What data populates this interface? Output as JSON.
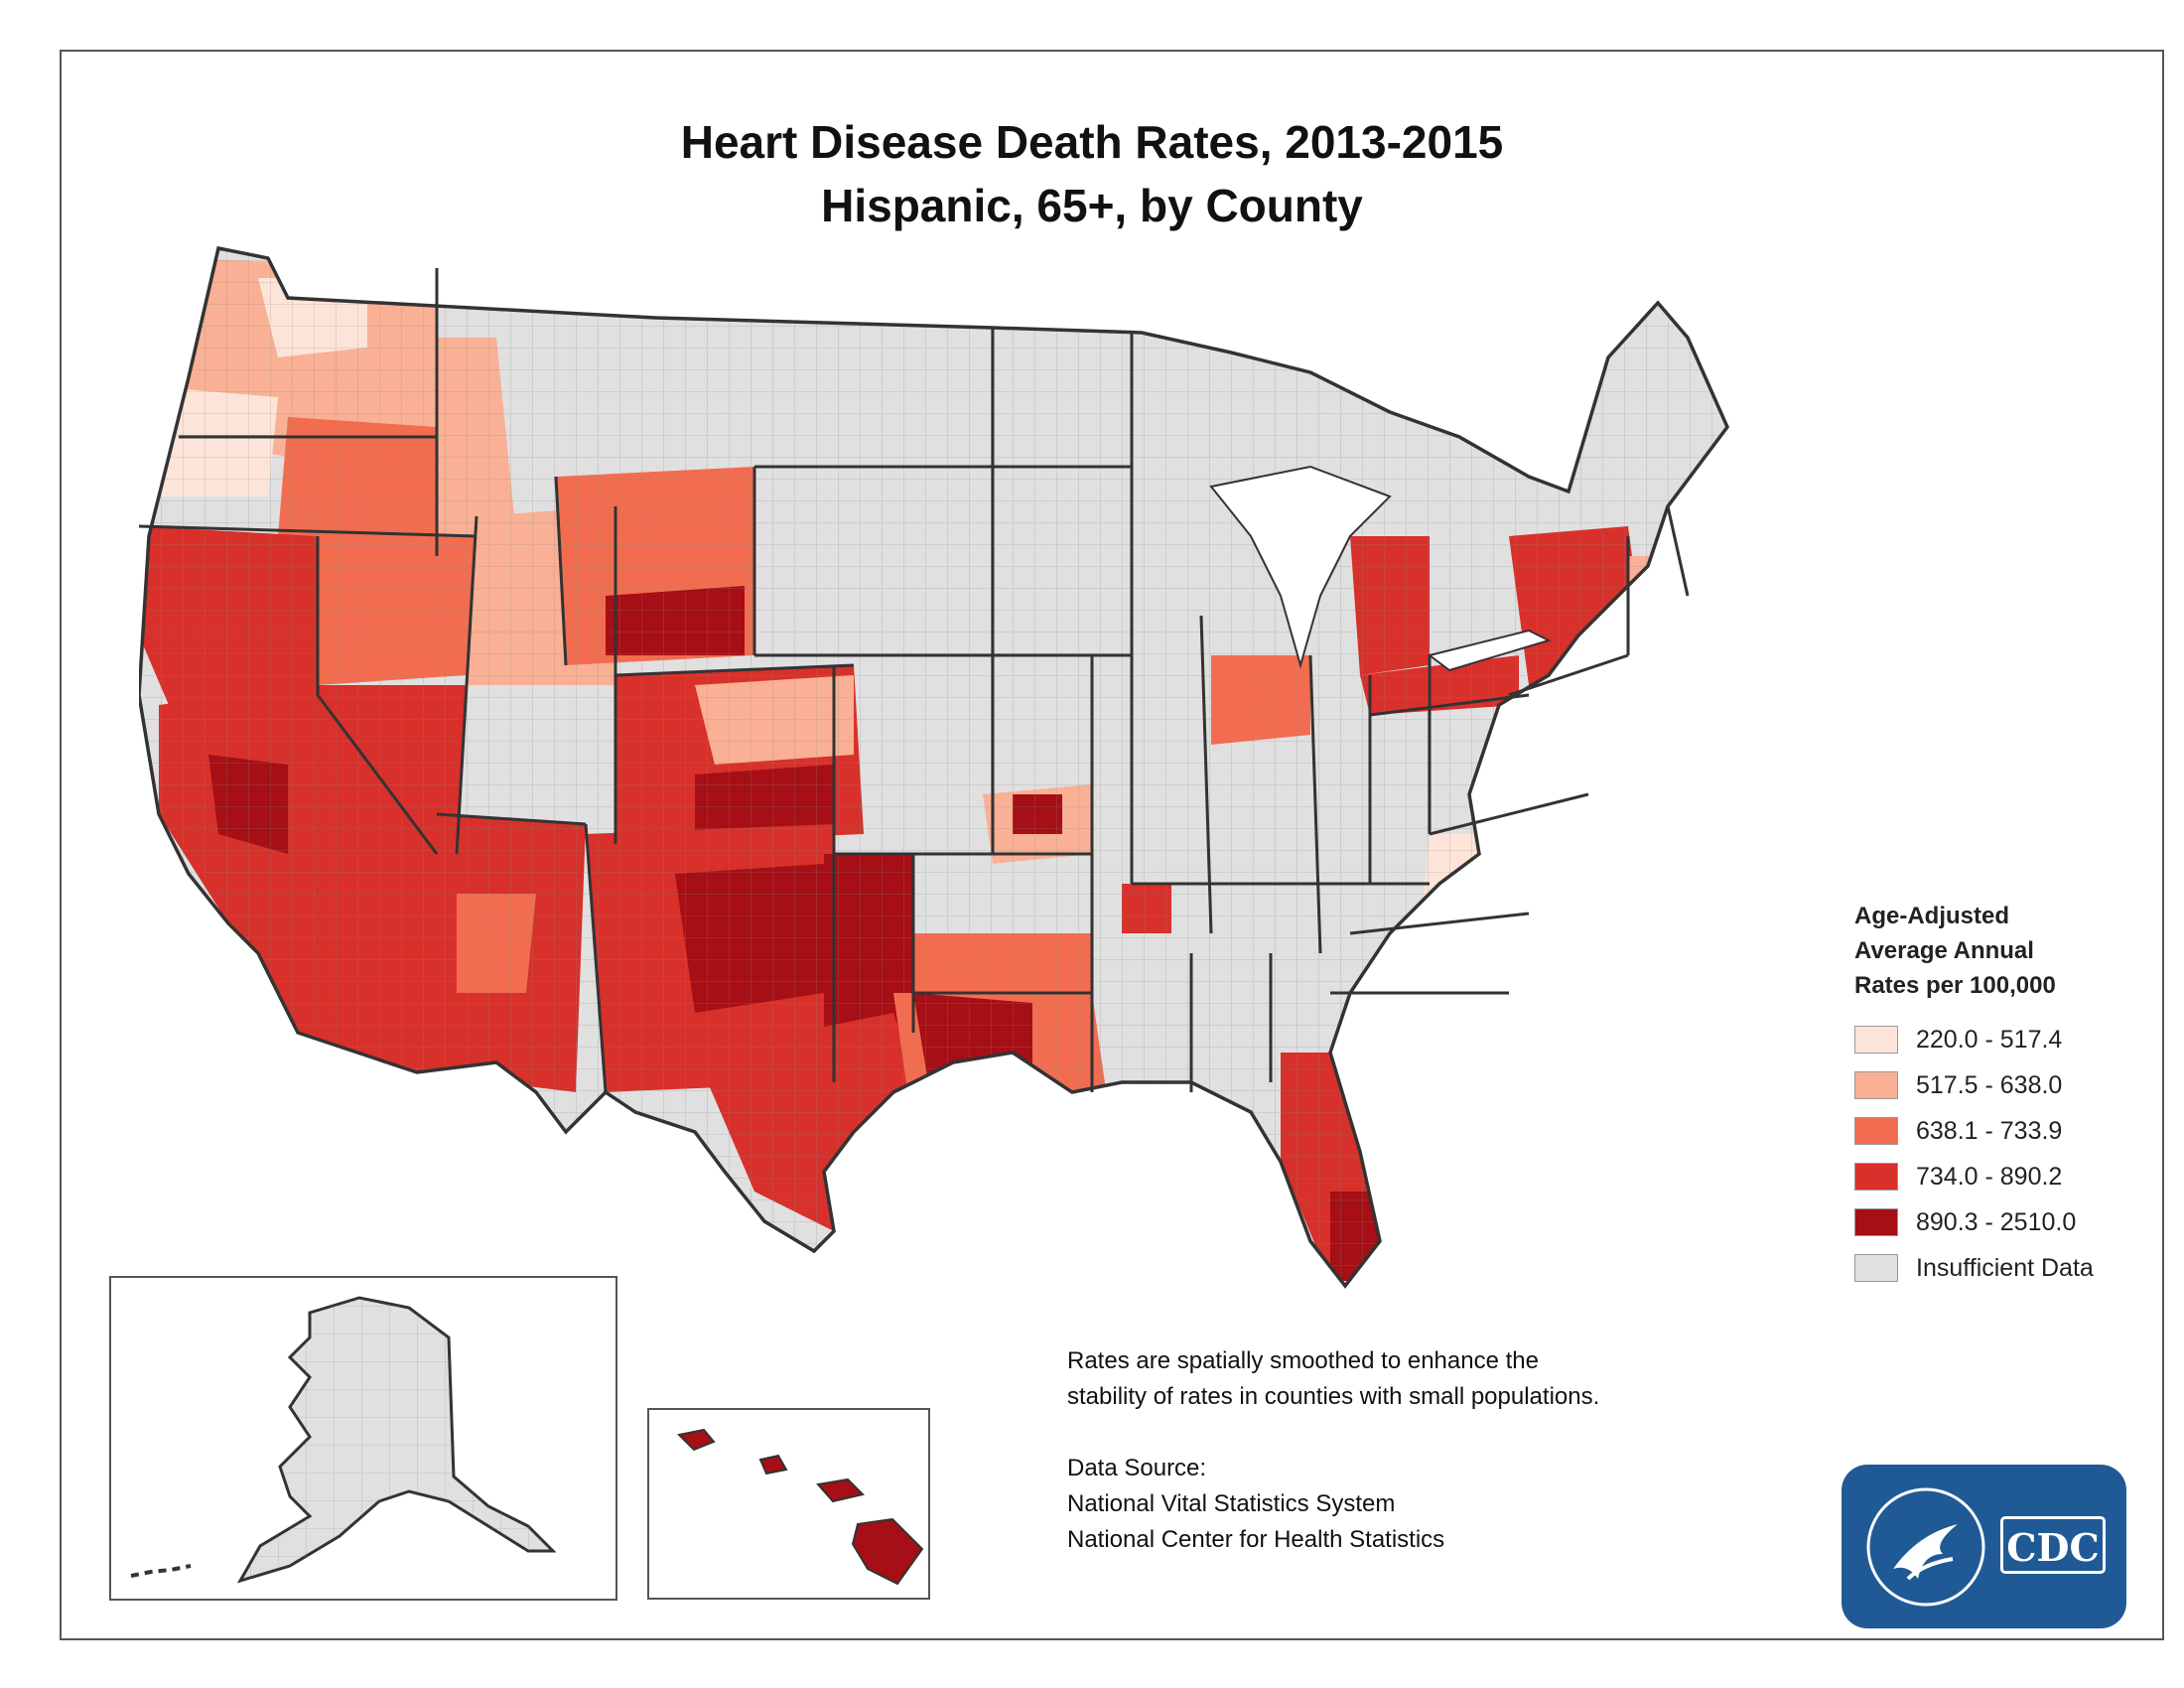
{
  "title": {
    "line1": "Heart Disease Death Rates, 2013-2015",
    "line2": "Hispanic, 65+, by County"
  },
  "legend": {
    "title_lines": [
      "Age-Adjusted",
      "Average Annual",
      "Rates per 100,000"
    ],
    "items": [
      {
        "label": "220.0 - 517.4",
        "color": "#fde4d9"
      },
      {
        "label": "517.5 - 638.0",
        "color": "#f9b095"
      },
      {
        "label": "638.1 - 733.9",
        "color": "#f26d50"
      },
      {
        "label": "734.0 - 890.2",
        "color": "#d8302a"
      },
      {
        "label": "890.3 - 2510.0",
        "color": "#a50f15"
      },
      {
        "label": "Insufficient Data",
        "color": "#e0e0e0"
      }
    ]
  },
  "notes": {
    "smoothing": "Rates are spatially smoothed to enhance the stability of rates in counties with small populations.",
    "source_heading": "Data Source:",
    "source_lines": [
      "National Vital Statistics System",
      "National Center for Health Statistics"
    ]
  },
  "logo": {
    "text": "CDC"
  },
  "colors": {
    "no_data": "#e0e0e0",
    "border": "#333333",
    "class1": "#fde4d9",
    "class2": "#f9b095",
    "class3": "#f26d50",
    "class4": "#d8302a",
    "class5": "#a50f15",
    "logo_bg": "#1f5a96"
  },
  "icons": {
    "logo": "hhs-eagle-icon"
  }
}
